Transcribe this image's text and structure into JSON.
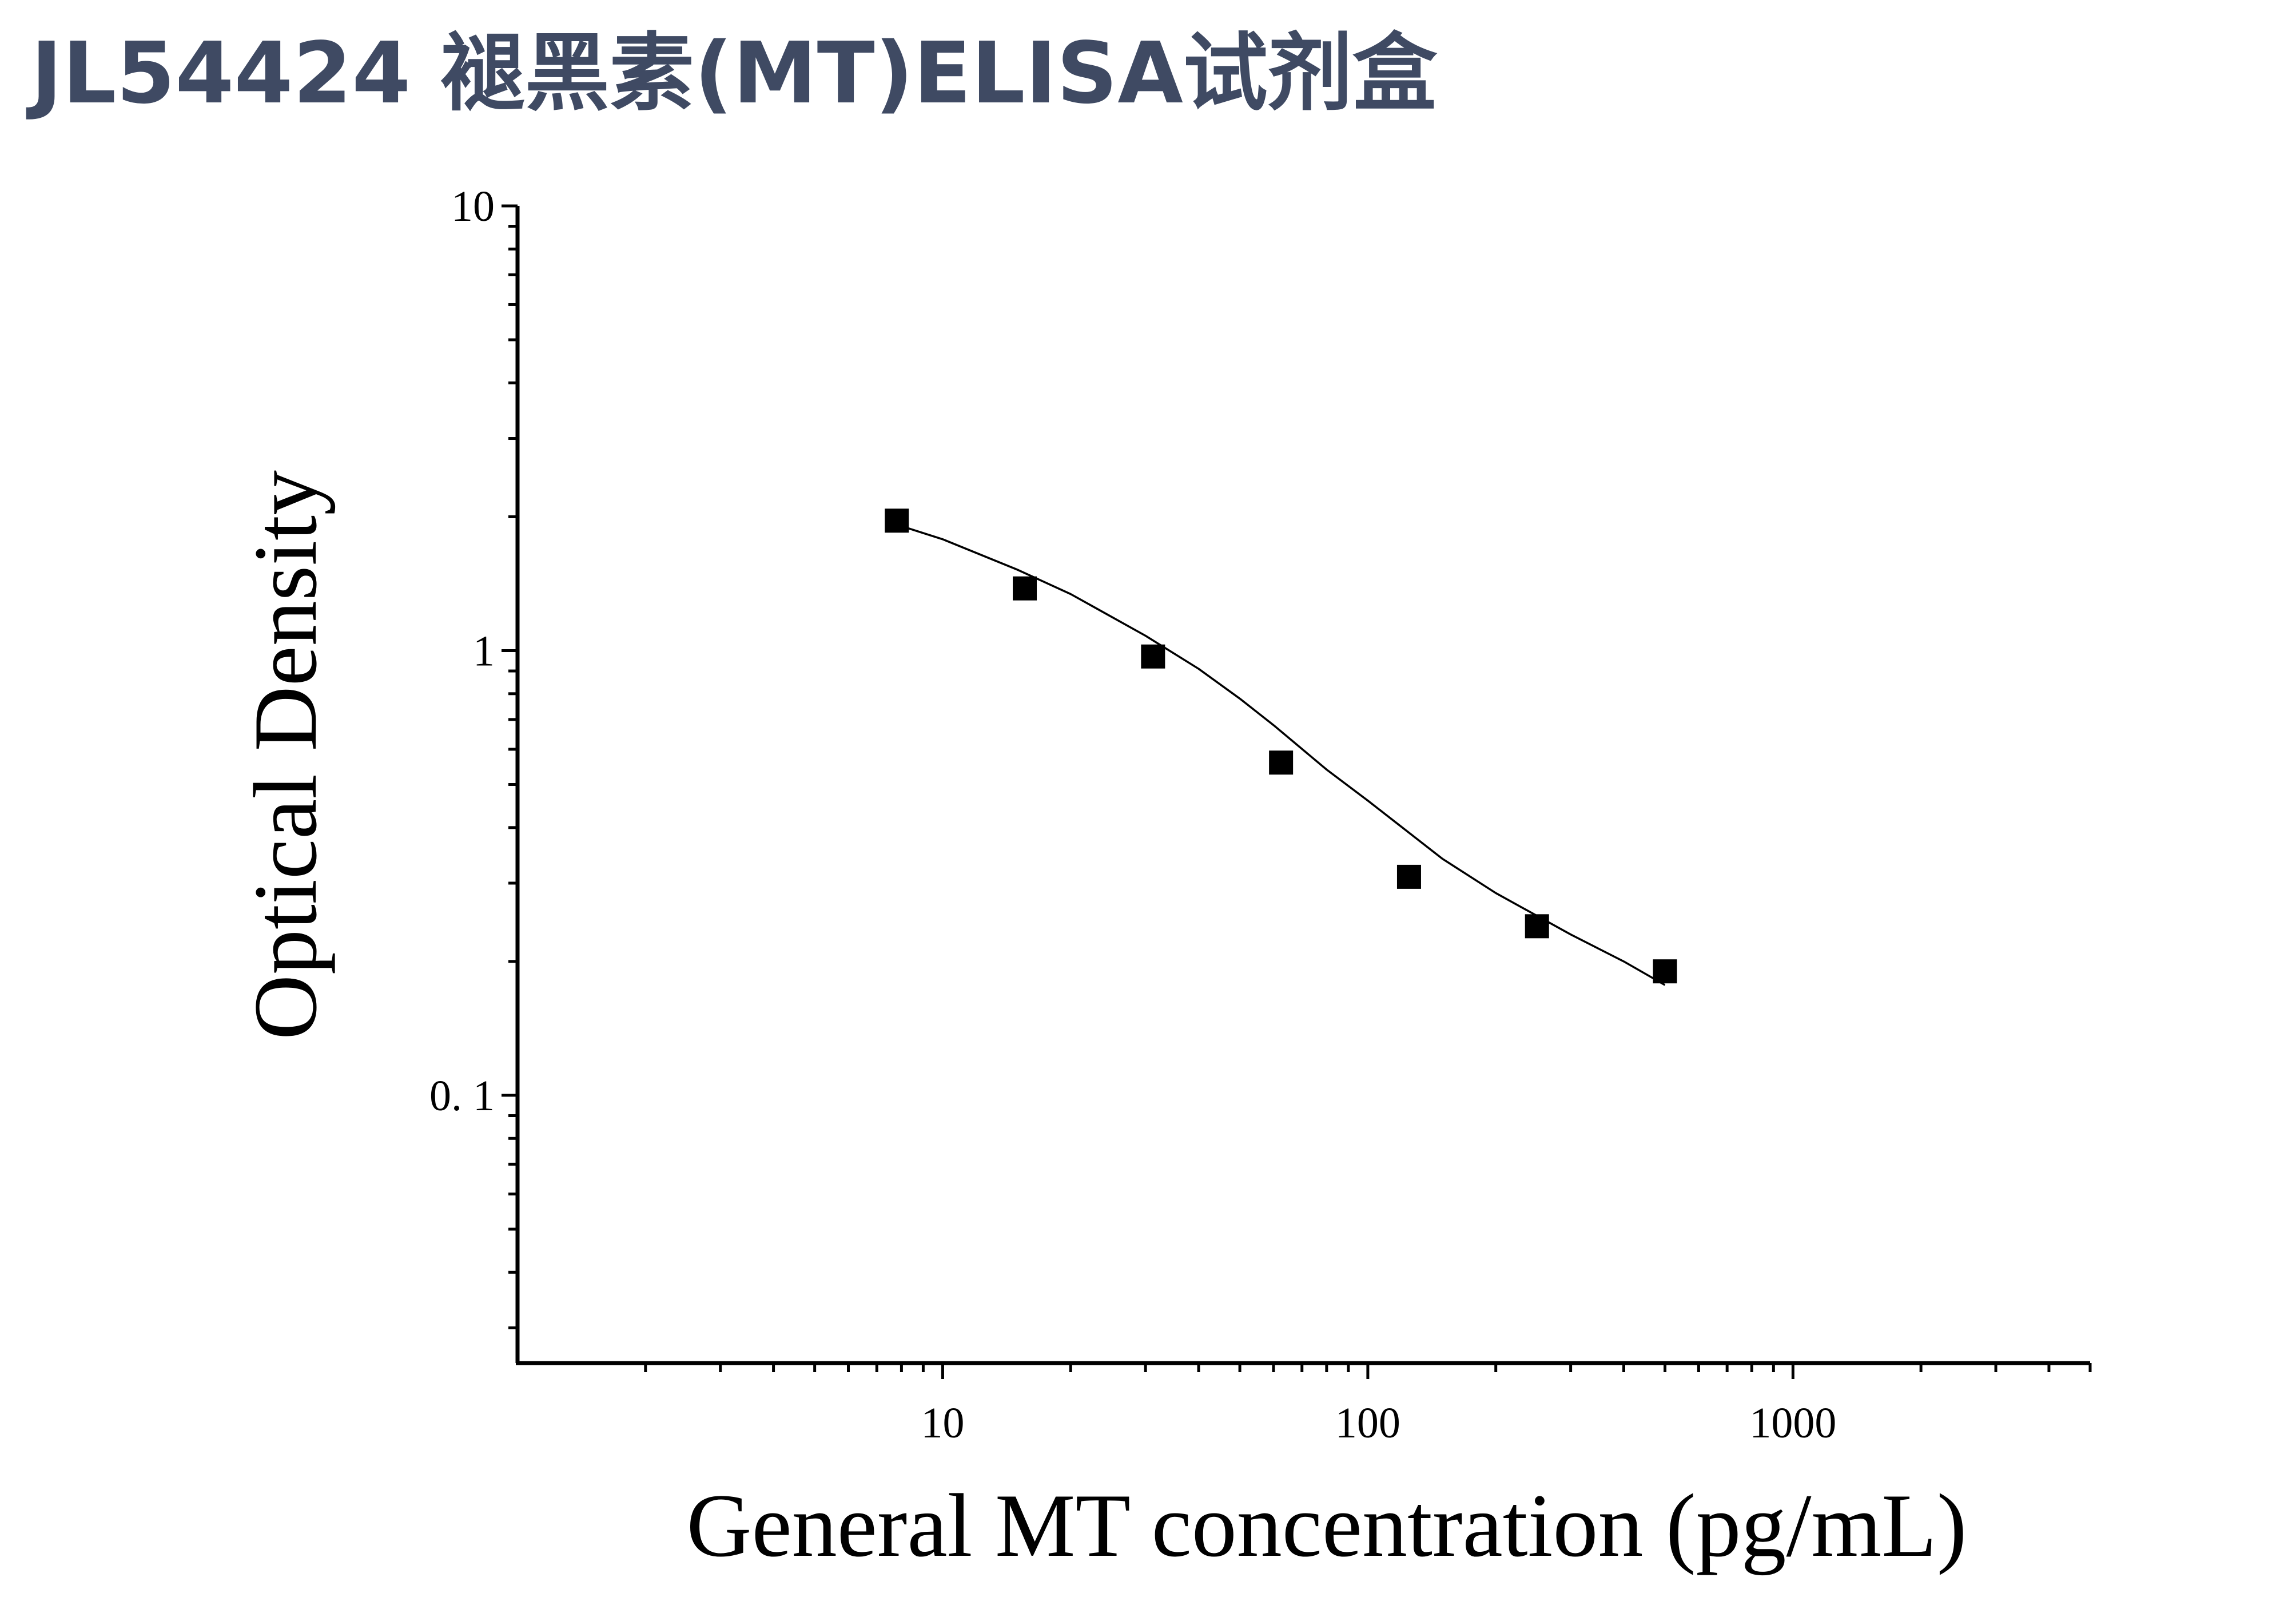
{
  "title": "JL54424 褪黑素(MT)ELISA试剂盒",
  "chart_data": {
    "type": "scatter",
    "title": "JL54424 褪黑素(MT)ELISA试剂盒",
    "xlabel": "General MT concentration (pg/mL)",
    "ylabel": "Optical Density",
    "xscale": "log",
    "yscale": "log",
    "xlim": [
      1,
      5000
    ],
    "ylim": [
      0.025,
      10
    ],
    "x_ticks": [
      {
        "value": 10,
        "label": "10"
      },
      {
        "value": 100,
        "label": "100"
      },
      {
        "value": 1000,
        "label": "1000"
      }
    ],
    "y_ticks": [
      {
        "value": 10,
        "label": "10"
      },
      {
        "value": 1,
        "label": "1"
      },
      {
        "value": 0.1,
        "label": "0. 1"
      }
    ],
    "grid": false,
    "legend": "none",
    "points": {
      "x": [
        7.8,
        15.6,
        31.25,
        62.5,
        125,
        250,
        500
      ],
      "y": [
        1.96,
        1.38,
        0.97,
        0.56,
        0.31,
        0.24,
        0.19
      ]
    },
    "fit_curve": {
      "type": "4PL",
      "x": [
        7.8,
        10,
        15,
        20,
        30,
        40,
        50,
        60,
        80,
        100,
        150,
        200,
        300,
        400,
        500
      ],
      "y": [
        1.92,
        1.78,
        1.52,
        1.34,
        1.08,
        0.91,
        0.78,
        0.68,
        0.54,
        0.46,
        0.34,
        0.285,
        0.23,
        0.2,
        0.177
      ]
    },
    "marker_color": "#000000",
    "line_color": "#000000"
  }
}
